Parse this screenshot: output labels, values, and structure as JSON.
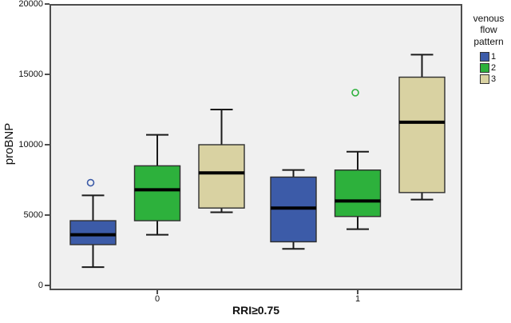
{
  "figure": {
    "background": "#FFFFFF"
  },
  "chart_data": {
    "type": "boxplot",
    "title": "",
    "ylabel": "proBNP",
    "xlabel": "RRI≥0.75",
    "ylim": [
      0,
      20000
    ],
    "yticks": [
      0,
      5000,
      10000,
      15000,
      20000
    ],
    "categories": [
      "0",
      "1"
    ],
    "grid": false,
    "plot_background": "#F0F0F0",
    "frame_color": "#4D4D4D",
    "median_color": "#000000",
    "whisker_color": "#1A1A1A",
    "box_border_color": "#2E2E2E",
    "legend": {
      "title": "venous flow pattern",
      "position": "right",
      "entries": [
        {
          "label": "1",
          "color": "#3C5BA8"
        },
        {
          "label": "2",
          "color": "#2DB13C"
        },
        {
          "label": "3",
          "color": "#D9D2A2"
        }
      ]
    },
    "series": [
      {
        "name": "1",
        "color": "#3C5BA8",
        "boxes": [
          {
            "category": "0",
            "low": 1300,
            "q1": 2900,
            "median": 3600,
            "q3": 4600,
            "high": 6400,
            "outliers": [
              7300
            ]
          },
          {
            "category": "1",
            "low": 2600,
            "q1": 3100,
            "median": 5500,
            "q3": 7700,
            "high": 8200,
            "outliers": []
          }
        ]
      },
      {
        "name": "2",
        "color": "#2DB13C",
        "boxes": [
          {
            "category": "0",
            "low": 3600,
            "q1": 4600,
            "median": 6800,
            "q3": 8500,
            "high": 10700,
            "outliers": []
          },
          {
            "category": "1",
            "low": 4000,
            "q1": 4900,
            "median": 6000,
            "q3": 8200,
            "high": 9500,
            "outliers": [
              13700
            ]
          }
        ]
      },
      {
        "name": "3",
        "color": "#D9D2A2",
        "boxes": [
          {
            "category": "0",
            "low": 5200,
            "q1": 5500,
            "median": 8000,
            "q3": 10000,
            "high": 12500,
            "outliers": []
          },
          {
            "category": "1",
            "low": 6100,
            "q1": 6600,
            "median": 11600,
            "q3": 14800,
            "high": 16400,
            "outliers": []
          }
        ]
      }
    ]
  }
}
